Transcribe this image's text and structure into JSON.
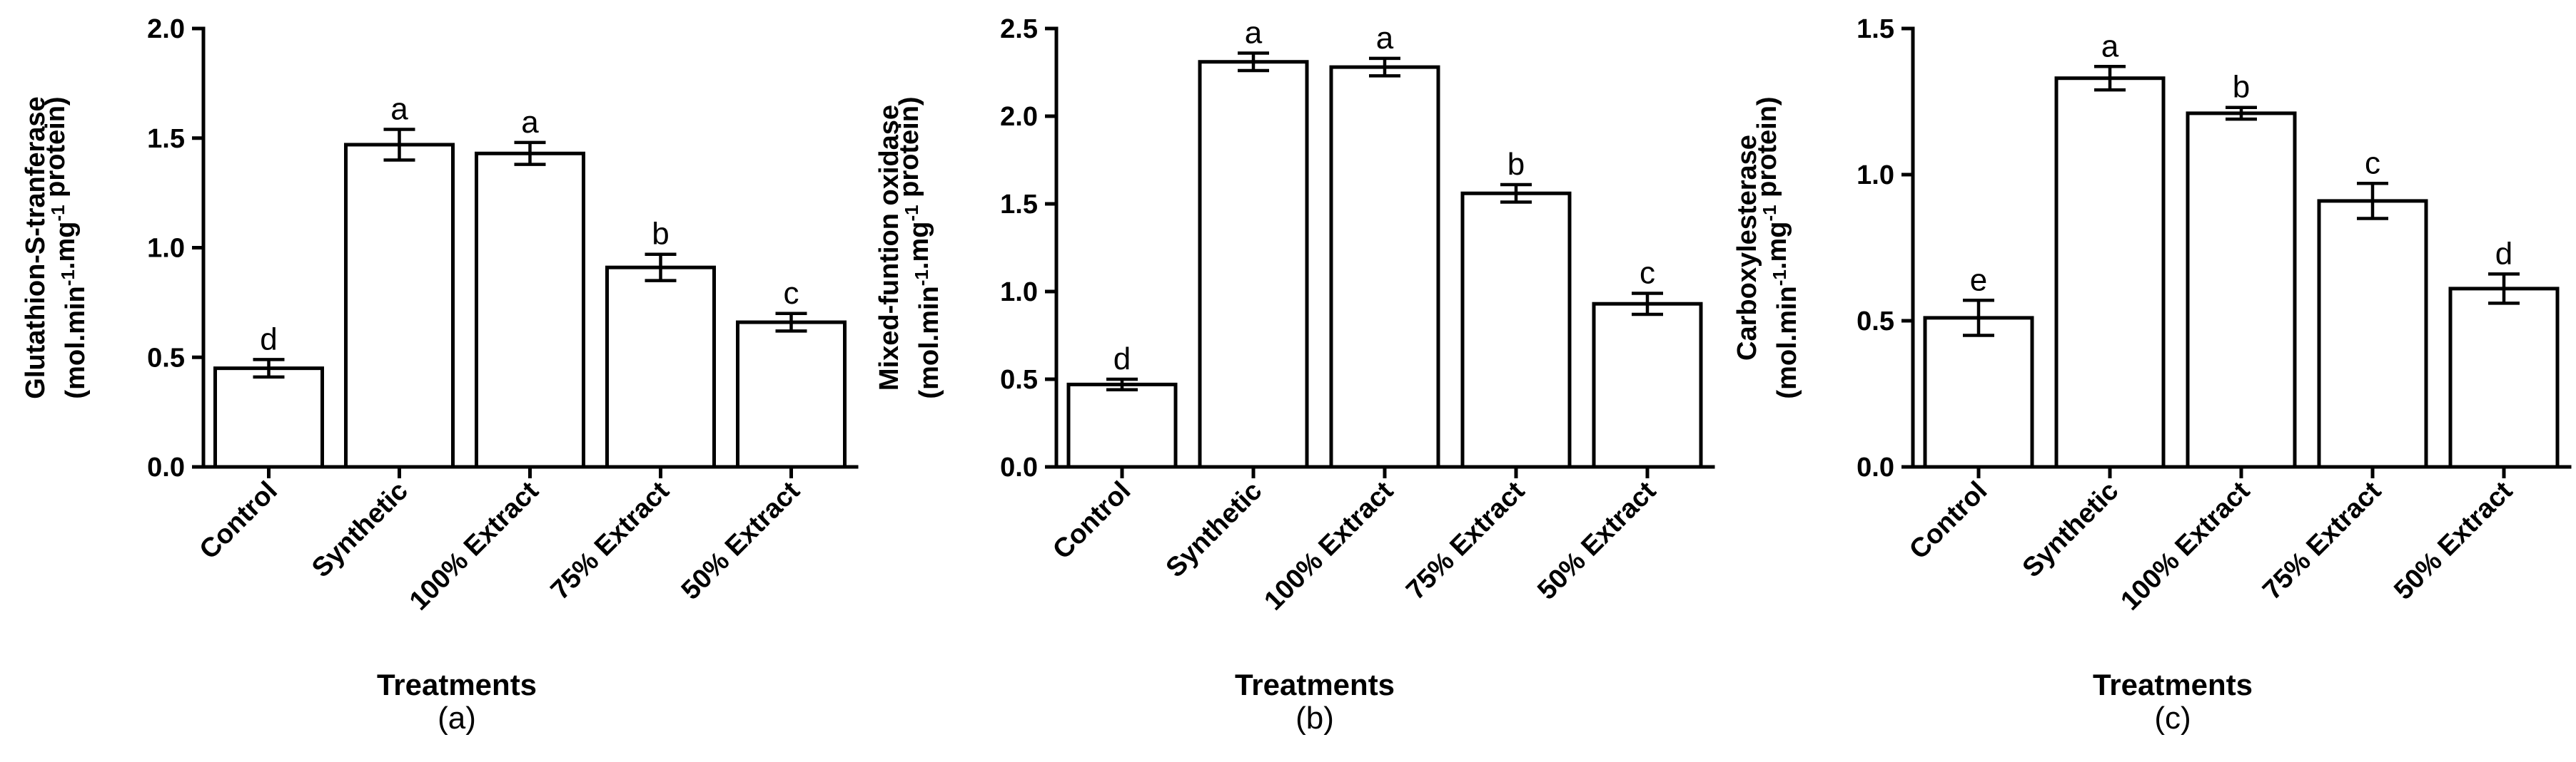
{
  "chart_data": [
    {
      "type": "bar",
      "panel_label": "(a)",
      "ylabel_line1": "Glutathion-S-tranferase",
      "ylabel_line2": "(mol.min-1.mg-1 protein)",
      "xlabel": "Treatments",
      "categories": [
        "Control",
        "Synthetic",
        "100% Extract",
        "75% Extract",
        "50% Extract"
      ],
      "values": [
        0.45,
        1.47,
        1.43,
        0.91,
        0.66
      ],
      "errors": [
        0.04,
        0.07,
        0.05,
        0.06,
        0.04
      ],
      "letters": [
        "d",
        "a",
        "a",
        "b",
        "c"
      ],
      "ylim": [
        0,
        2.0
      ],
      "yticks": [
        "0.0",
        "0.5",
        "1.0",
        "1.5",
        "2.0"
      ]
    },
    {
      "type": "bar",
      "panel_label": "(b)",
      "ylabel_line1": "Mixed-funtion oxidase",
      "ylabel_line2": "(mol.min-1.mg-1 protein)",
      "xlabel": "Treatments",
      "categories": [
        "Control",
        "Synthetic",
        "100% Extract",
        "75% Extract",
        "50% Extract"
      ],
      "values": [
        0.47,
        2.31,
        2.28,
        1.56,
        0.93
      ],
      "errors": [
        0.03,
        0.05,
        0.05,
        0.05,
        0.06
      ],
      "letters": [
        "d",
        "a",
        "a",
        "b",
        "c"
      ],
      "ylim": [
        0,
        2.5
      ],
      "yticks": [
        "0.0",
        "0.5",
        "1.0",
        "1.5",
        "2.0",
        "2.5"
      ]
    },
    {
      "type": "bar",
      "panel_label": "(c)",
      "ylabel_line1": "Carboxylesterase",
      "ylabel_line2": "(mol.min-1.mg-1 protein)",
      "xlabel": "Treatments",
      "categories": [
        "Control",
        "Synthetic",
        "100% Extract",
        "75% Extract",
        "50% Extract"
      ],
      "values": [
        0.51,
        1.33,
        1.21,
        0.91,
        0.61
      ],
      "errors": [
        0.06,
        0.04,
        0.02,
        0.06,
        0.05
      ],
      "letters": [
        "e",
        "a",
        "b",
        "c",
        "d"
      ],
      "ylim": [
        0,
        1.5
      ],
      "yticks": [
        "0.0",
        "0.5",
        "1.0",
        "1.5"
      ]
    }
  ]
}
